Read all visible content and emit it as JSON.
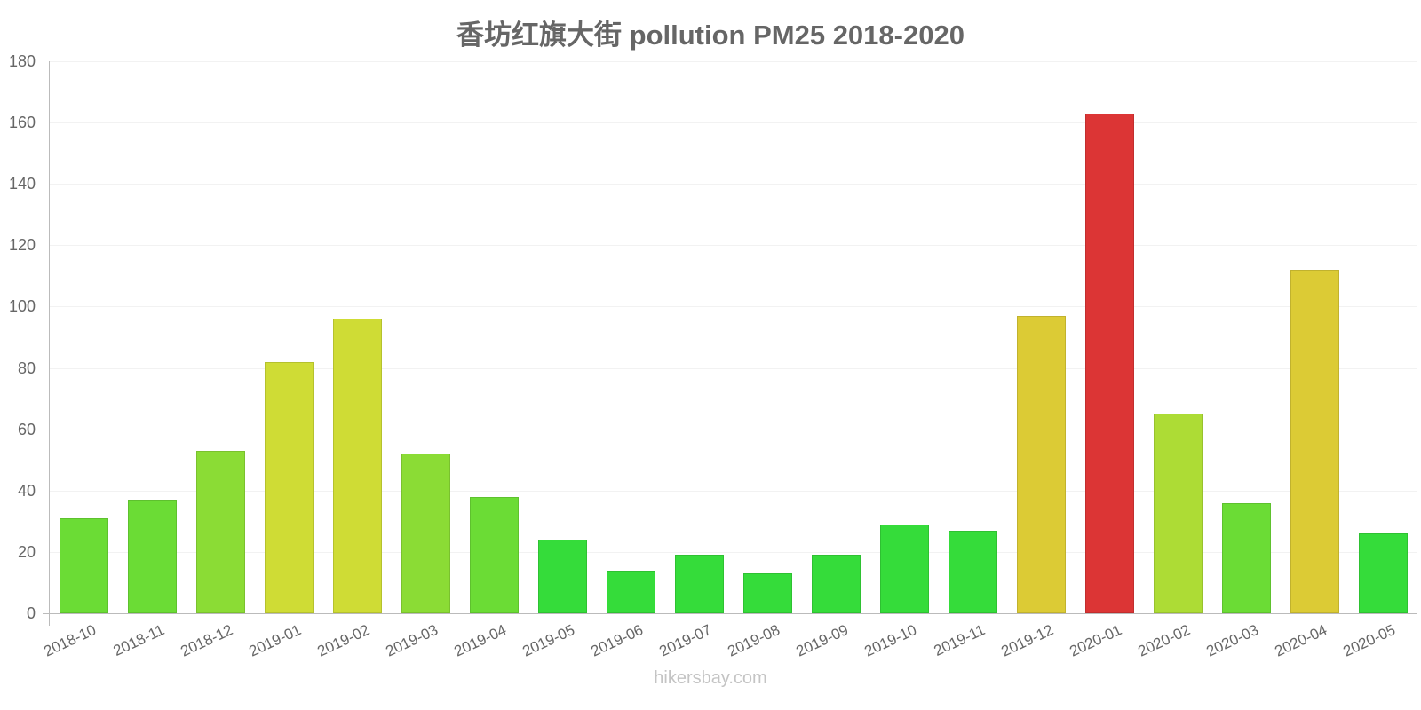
{
  "chart_data": {
    "type": "bar",
    "title": "香坊红旗大街 pollution PM25 2018-2020",
    "xlabel": "",
    "ylabel": "",
    "ylim": [
      0,
      180
    ],
    "yticks": [
      0,
      20,
      40,
      60,
      80,
      100,
      120,
      140,
      160,
      180
    ],
    "grid": true,
    "legend": null,
    "categories": [
      "2018-10",
      "2018-11",
      "2018-12",
      "2019-01",
      "2019-02",
      "2019-03",
      "2019-04",
      "2019-05",
      "2019-06",
      "2019-07",
      "2019-08",
      "2019-09",
      "2019-10",
      "2019-11",
      "2019-12",
      "2020-01",
      "2020-02",
      "2020-03",
      "2020-04",
      "2020-05"
    ],
    "values": [
      31,
      37,
      53,
      82,
      96,
      52,
      38,
      24,
      14,
      19,
      13,
      19,
      29,
      27,
      97,
      163,
      65,
      36,
      112,
      26
    ],
    "colors": [
      "#6bdc35",
      "#6bdc35",
      "#8bdc35",
      "#cfdc35",
      "#cfdc35",
      "#8bdc35",
      "#6bdc35",
      "#35dc3a",
      "#35dc3a",
      "#35dc3a",
      "#35dc3a",
      "#35dc3a",
      "#35dc3a",
      "#35dc3a",
      "#dccb35",
      "#dc3535",
      "#addc35",
      "#6bdc35",
      "#dccb35",
      "#35dc3a"
    ]
  },
  "header": {
    "title": "香坊红旗大街 pollution PM25 2018-2020"
  },
  "footer": {
    "watermark": "hikersbay.com"
  }
}
